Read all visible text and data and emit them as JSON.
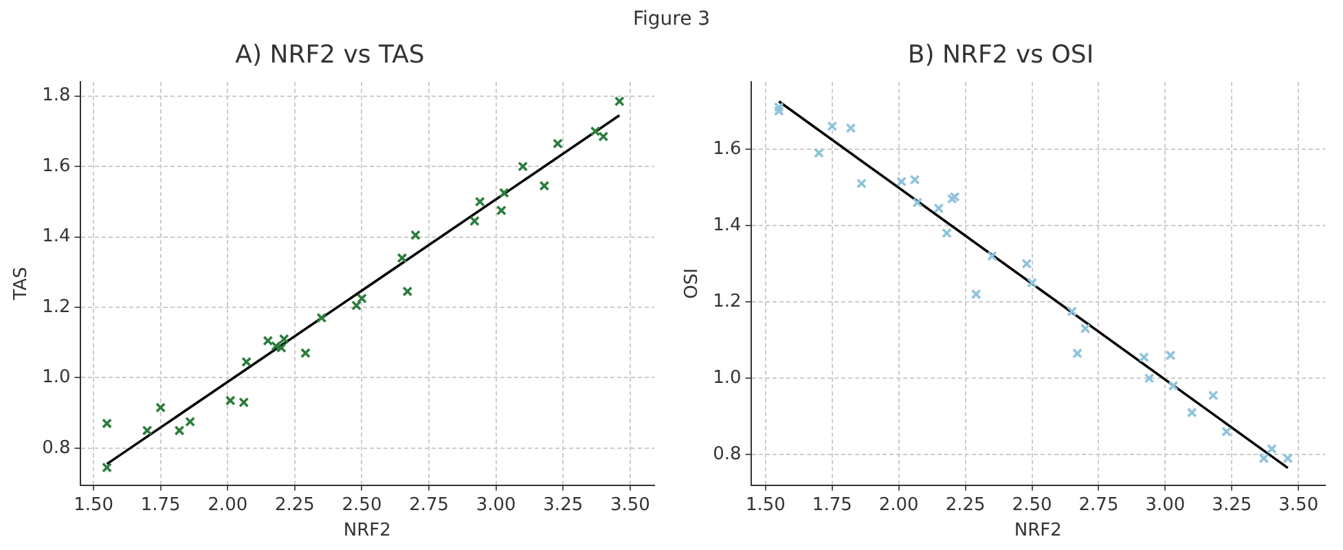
{
  "chart_data": [
    {
      "type": "scatter",
      "title": "A) NRF2 vs TAS",
      "xlabel": "NRF2",
      "ylabel": "TAS",
      "annotations": [
        "Figure 3"
      ],
      "xlim": [
        1.45,
        3.59
      ],
      "ylim": [
        0.695,
        1.84
      ],
      "xticks": [
        {
          "value": 1.5,
          "label": "1.50"
        },
        {
          "value": 1.75,
          "label": "1.75"
        },
        {
          "value": 2,
          "label": "2.00"
        },
        {
          "value": 2.25,
          "label": "2.25"
        },
        {
          "value": 2.5,
          "label": "2.50"
        },
        {
          "value": 2.75,
          "label": "2.75"
        },
        {
          "value": 3,
          "label": "3.00"
        },
        {
          "value": 3.25,
          "label": "3.25"
        },
        {
          "value": 3.5,
          "label": "3.50"
        }
      ],
      "yticks": [
        {
          "value": 0.8,
          "label": "0.8"
        },
        {
          "value": 1,
          "label": "1.0"
        },
        {
          "value": 1.2,
          "label": "1.2"
        },
        {
          "value": 1.4,
          "label": "1.4"
        },
        {
          "value": 1.6,
          "label": "1.6"
        },
        {
          "value": 1.8,
          "label": "1.8"
        }
      ],
      "grid": true,
      "legend": false,
      "series": [
        {
          "type": "scatter",
          "marker": "cross",
          "color": "#2b7d3b",
          "x": [
            1.55,
            1.55,
            1.7,
            1.75,
            1.82,
            1.86,
            2.01,
            2.06,
            2.07,
            2.15,
            2.18,
            2.2,
            2.21,
            2.29,
            2.35,
            2.48,
            2.5,
            2.65,
            2.67,
            2.7,
            2.92,
            2.94,
            3.02,
            3.03,
            3.1,
            3.18,
            3.23,
            3.37,
            3.4,
            3.46
          ],
          "values": [
            0.87,
            0.745,
            0.85,
            0.915,
            0.85,
            0.875,
            0.935,
            0.93,
            1.045,
            1.105,
            1.09,
            1.085,
            1.11,
            1.07,
            1.17,
            1.205,
            1.225,
            1.34,
            1.245,
            1.405,
            1.445,
            1.5,
            1.475,
            1.525,
            1.6,
            1.545,
            1.665,
            1.7,
            1.685,
            1.785
          ]
        },
        {
          "type": "line",
          "marker": "none",
          "line_style": "solid",
          "color": "#000000",
          "x": [
            1.55,
            3.46
          ],
          "values": [
            0.755,
            1.745
          ]
        }
      ]
    },
    {
      "type": "scatter",
      "title": "B) NRF2 vs OSI",
      "xlabel": "NRF2",
      "ylabel": "OSI",
      "xlim": [
        1.445,
        3.6
      ],
      "ylim": [
        0.72,
        1.776
      ],
      "xticks": [
        {
          "value": 1.5,
          "label": "1.50"
        },
        {
          "value": 1.75,
          "label": "1.75"
        },
        {
          "value": 2,
          "label": "2.00"
        },
        {
          "value": 2.25,
          "label": "2.25"
        },
        {
          "value": 2.5,
          "label": "2.50"
        },
        {
          "value": 2.75,
          "label": "2.75"
        },
        {
          "value": 3,
          "label": "3.00"
        },
        {
          "value": 3.25,
          "label": "3.25"
        },
        {
          "value": 3.5,
          "label": "3.50"
        }
      ],
      "yticks": [
        {
          "value": 0.8,
          "label": "0.8"
        },
        {
          "value": 1,
          "label": "1.0"
        },
        {
          "value": 1.2,
          "label": "1.2"
        },
        {
          "value": 1.4,
          "label": "1.4"
        },
        {
          "value": 1.6,
          "label": "1.6"
        }
      ],
      "grid": true,
      "legend": false,
      "series": [
        {
          "type": "scatter",
          "marker": "cross",
          "color": "#8ec3dc",
          "x": [
            1.55,
            1.55,
            1.7,
            1.75,
            1.82,
            1.86,
            2.01,
            2.06,
            2.07,
            2.15,
            2.18,
            2.2,
            2.21,
            2.29,
            2.35,
            2.48,
            2.5,
            2.65,
            2.67,
            2.7,
            2.92,
            2.94,
            3.02,
            3.03,
            3.1,
            3.18,
            3.23,
            3.37,
            3.4,
            3.46
          ],
          "values": [
            1.7,
            1.71,
            1.59,
            1.66,
            1.655,
            1.51,
            1.515,
            1.52,
            1.46,
            1.445,
            1.38,
            1.47,
            1.475,
            1.22,
            1.32,
            1.3,
            1.25,
            1.175,
            1.065,
            1.13,
            1.055,
            1.0,
            1.06,
            0.98,
            0.91,
            0.955,
            0.86,
            0.79,
            0.815,
            0.79
          ]
        },
        {
          "type": "line",
          "marker": "none",
          "line_style": "solid",
          "color": "#000000",
          "x": [
            1.55,
            3.46
          ],
          "values": [
            1.725,
            0.765
          ]
        }
      ]
    }
  ]
}
